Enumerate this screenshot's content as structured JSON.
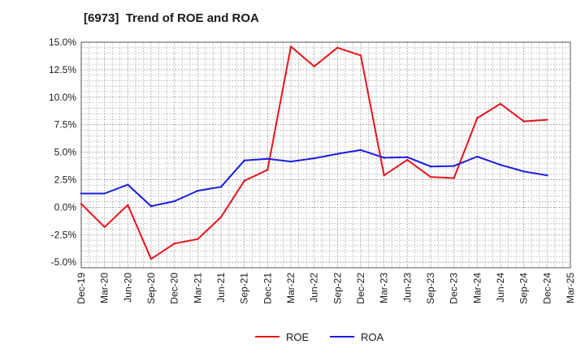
{
  "chart_data": {
    "type": "line",
    "title": "[6973]  Trend of ROE and ROA",
    "xlabel": "",
    "ylabel": "",
    "categories": [
      "Dec-19",
      "Mar-20",
      "Jun-20",
      "Sep-20",
      "Dec-20",
      "Mar-21",
      "Jun-21",
      "Sep-21",
      "Dec-21",
      "Mar-22",
      "Jun-22",
      "Sep-22",
      "Dec-22",
      "Mar-23",
      "Jun-23",
      "Sep-23",
      "Dec-23",
      "Mar-24",
      "Jun-24",
      "Sep-24",
      "Dec-24",
      "Mar-25"
    ],
    "ylim": [
      -5.5,
      15.0
    ],
    "yticks": [
      -5.0,
      -2.5,
      0.0,
      2.5,
      5.0,
      7.5,
      10.0,
      12.5,
      15.0
    ],
    "ytick_labels": [
      "-5.0%",
      "-2.5%",
      "0.0%",
      "2.5%",
      "5.0%",
      "7.5%",
      "10.0%",
      "12.5%",
      "15.0%"
    ],
    "grid": true,
    "legend_position": "bottom-center",
    "series": [
      {
        "name": "ROE",
        "color": "#e8141b",
        "values": [
          0.3,
          -1.8,
          0.2,
          -4.7,
          -3.3,
          -2.9,
          -0.9,
          2.4,
          3.4,
          14.6,
          12.8,
          14.5,
          13.8,
          2.9,
          4.3,
          2.75,
          2.65,
          8.1,
          9.4,
          7.8,
          7.95,
          null
        ]
      },
      {
        "name": "ROA",
        "color": "#1c1ce0",
        "values": [
          1.25,
          1.25,
          2.05,
          0.1,
          0.55,
          1.5,
          1.85,
          4.25,
          4.4,
          4.15,
          4.45,
          4.85,
          5.2,
          4.5,
          4.55,
          3.7,
          3.75,
          4.6,
          3.85,
          3.25,
          2.9,
          null
        ]
      }
    ]
  }
}
